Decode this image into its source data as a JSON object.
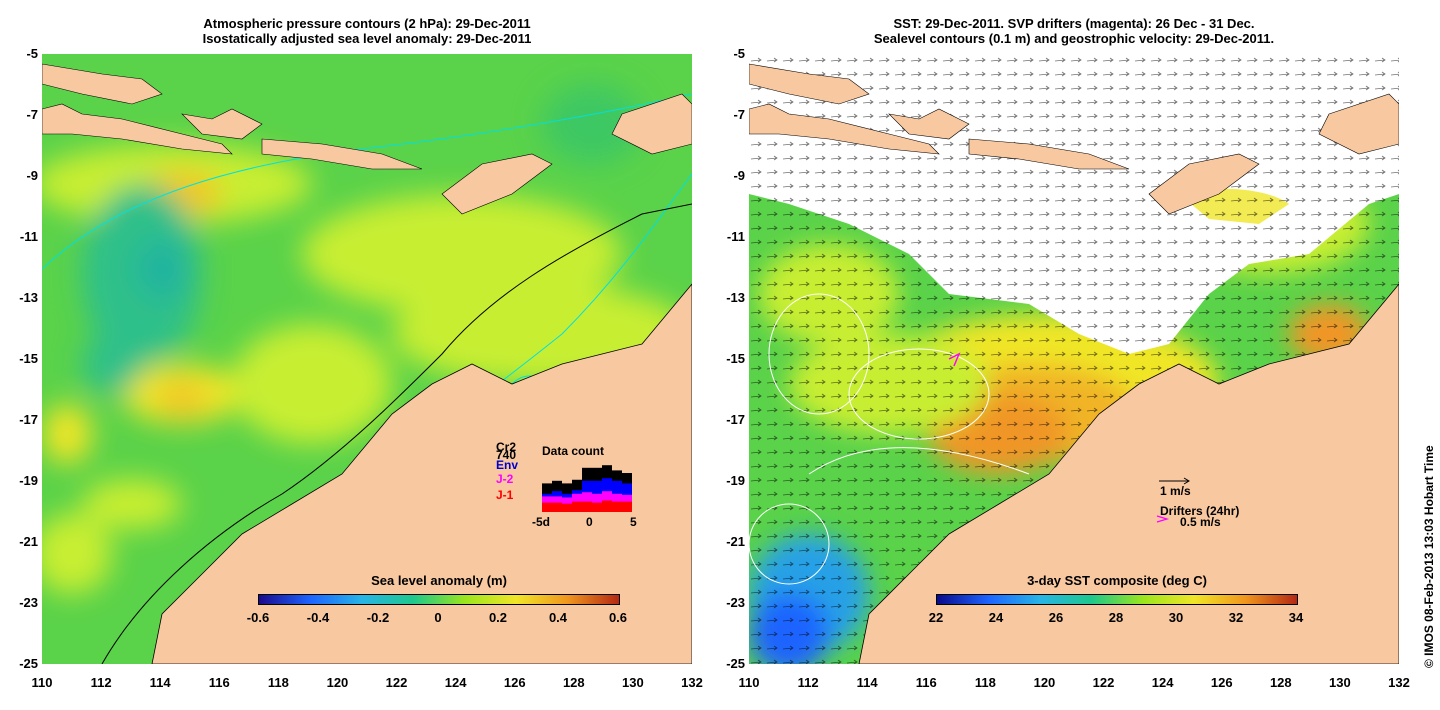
{
  "left_panel": {
    "title_line1": "Atmospheric pressure contours (2 hPa): 29-Dec-2011",
    "title_line2": "Isostatically adjusted sea level anomaly: 29-Dec-2011",
    "colorbar": {
      "title": "Sea level anomaly (m)",
      "ticks": [
        "-0.6",
        "-0.4",
        "-0.2",
        "0",
        "0.2",
        "0.4",
        "0.6"
      ],
      "colors": [
        "#1a0a8c",
        "#1e64ff",
        "#28b4e6",
        "#1ec88c",
        "#9ae61e",
        "#f0e628",
        "#f0961e",
        "#b42814"
      ]
    },
    "inset": {
      "title": "Data count",
      "labels": [
        "Cr2",
        "740",
        "Env",
        "J-2",
        "J-1"
      ],
      "label_colors": [
        "#000000",
        "#000000",
        "#0000cc",
        "#ff00ff",
        "#ff0000"
      ],
      "xticks": [
        "-5d",
        "0",
        "5"
      ],
      "bars_black": [
        0.55,
        0.6,
        0.55,
        0.62,
        0.85,
        0.85,
        0.9,
        0.8,
        0.75
      ],
      "bars_blue": [
        0.35,
        0.4,
        0.35,
        0.42,
        0.6,
        0.6,
        0.65,
        0.6,
        0.55
      ],
      "bars_magenta": [
        0.3,
        0.3,
        0.28,
        0.35,
        0.38,
        0.35,
        0.4,
        0.35,
        0.33
      ],
      "bars_red": [
        0.18,
        0.18,
        0.16,
        0.2,
        0.2,
        0.18,
        0.22,
        0.2,
        0.2
      ]
    }
  },
  "right_panel": {
    "title_line1": "SST: 29-Dec-2011. SVP drifters (magenta): 26 Dec - 31 Dec.",
    "title_line2": "Sealevel contours (0.1 m) and geostrophic velocity: 29-Dec-2011.",
    "colorbar": {
      "title": "3-day SST composite (deg C)",
      "ticks": [
        "22",
        "24",
        "26",
        "28",
        "30",
        "32",
        "34"
      ],
      "colors": [
        "#0a0a8c",
        "#1e64ff",
        "#28b4e6",
        "#1ec88c",
        "#9ae61e",
        "#f0e628",
        "#f0961e",
        "#b42814"
      ]
    },
    "velocity_legend": "1 m/s",
    "drifter_legend_title": "Drifters (24hr)",
    "drifter_legend_speed": "0.5 m/s"
  },
  "axes": {
    "y_ticks": [
      "-5",
      "-7",
      "-9",
      "-11",
      "-13",
      "-15",
      "-17",
      "-19",
      "-21",
      "-23",
      "-25"
    ],
    "x_ticks": [
      "110",
      "112",
      "114",
      "116",
      "118",
      "120",
      "122",
      "124",
      "126",
      "128",
      "130",
      "132"
    ]
  },
  "copyright": "© IMOS 08-Feb-2013 13:03 Hobart Time",
  "colors": {
    "land": "#f8c8a0",
    "ocean_green": "#5ad24a",
    "ocean_yellow": "#c8ee32",
    "cloud": "#ffffff"
  }
}
